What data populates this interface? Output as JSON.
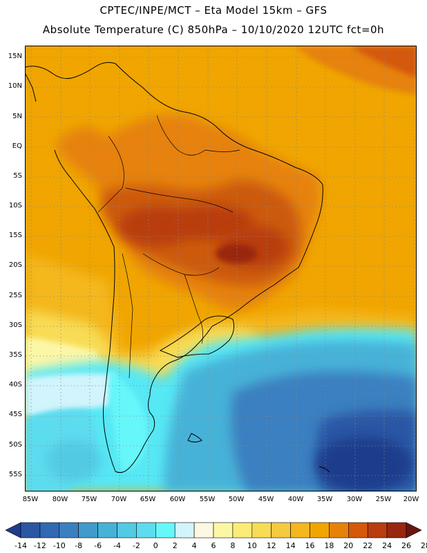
{
  "header": {
    "line1": "CPTEC/INPE/MCT –  Eta Model 15km – GFS",
    "line2": "Absolute Temperature (C) 850hPa – 10/10/2020 12UTC fct=0h"
  },
  "map": {
    "lat_labels": [
      "15N",
      "10N",
      "5N",
      "EQ",
      "5S",
      "10S",
      "15S",
      "20S",
      "25S",
      "30S",
      "35S",
      "40S",
      "45S",
      "50S",
      "55S"
    ],
    "lon_labels": [
      "85W",
      "80W",
      "75W",
      "70W",
      "65W",
      "60W",
      "55W",
      "50W",
      "45W",
      "40W",
      "35W",
      "30W",
      "25W",
      "20W"
    ],
    "colors": {
      "ocean_orange": "#f0a500",
      "land_dark": "#cc5a0b",
      "hot_core": "#a8320a",
      "cold_blue": "#3aa6d0",
      "deep_blue": "#1e4a96",
      "cyan": "#56e8f4"
    }
  },
  "colorbar": {
    "labels": [
      "-14",
      "-12",
      "-10",
      "-8",
      "-6",
      "-4",
      "-2",
      "0",
      "2",
      "4",
      "6",
      "8",
      "10",
      "12",
      "14",
      "16",
      "18",
      "20",
      "22",
      "24",
      "26",
      "28"
    ],
    "colors": [
      "#1f3c8c",
      "#2b56a4",
      "#3169b2",
      "#3a80c0",
      "#409bcc",
      "#47b2d8",
      "#52cae3",
      "#5ddcef",
      "#66f7fa",
      "#d2f4fc",
      "#fdf8e2",
      "#fcf7a6",
      "#fbec78",
      "#f8dc55",
      "#f5c940",
      "#f4b71f",
      "#f0a500",
      "#e6820a",
      "#d4590a",
      "#b93d0d",
      "#992710",
      "#6c1410"
    ]
  }
}
